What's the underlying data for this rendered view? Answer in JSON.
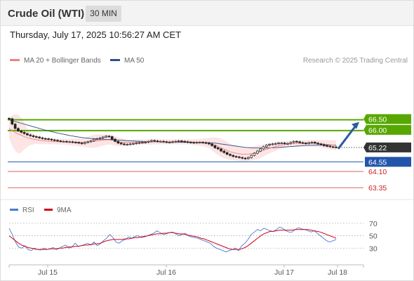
{
  "header": {
    "title": "Crude Oil (WTI)",
    "timeframe": "30 MIN"
  },
  "datetime": "Thursday, July 17, 2025 10:56:27 AM CET",
  "legend": {
    "ma20": {
      "label": "MA 20 + Bollinger Bands",
      "color": "#f08080"
    },
    "ma50": {
      "label": "MA 50",
      "color": "#2c4f8c"
    }
  },
  "credit": "Research © 2025 Trading Central",
  "rsi_legend": {
    "rsi": {
      "label": "RSI",
      "color": "#4a7bd0"
    },
    "ma9": {
      "label": "9MA",
      "color": "#d0021b"
    }
  },
  "chart_data": [
    {
      "type": "candlestick",
      "title": "Crude Oil (WTI)",
      "timeframe": "30 MIN",
      "ylim": [
        62.9,
        67.3
      ],
      "x_ticks": [
        "Jul 15",
        "Jul 16",
        "Jul 17",
        "Jul 18"
      ],
      "current_price": {
        "value": 65.22,
        "label": "65.22",
        "color": "#333333"
      },
      "levels": [
        {
          "value": 66.5,
          "label": "66.50",
          "kind": "resistance",
          "color": "#58a700"
        },
        {
          "value": 66.0,
          "label": "66.00",
          "kind": "resistance",
          "color": "#58a700"
        },
        {
          "value": 64.55,
          "label": "64.55",
          "kind": "pivot",
          "color": "#2255aa"
        },
        {
          "value": 64.1,
          "label": "64.10",
          "kind": "support",
          "color": "#cc2222"
        },
        {
          "value": 63.35,
          "label": "63.35",
          "kind": "support",
          "color": "#cc2222"
        }
      ],
      "series": [
        {
          "name": "MA 20 + Bollinger Bands",
          "color": "#f08080"
        },
        {
          "name": "MA 50",
          "color": "#2c4f8c"
        }
      ],
      "close": [
        66.55,
        66.3,
        66.1,
        65.98,
        65.92,
        65.86,
        65.8,
        65.76,
        65.72,
        65.7,
        65.66,
        65.63,
        65.62,
        65.6,
        65.57,
        65.55,
        65.52,
        65.5,
        65.5,
        65.48,
        65.48,
        65.46,
        65.45,
        65.42,
        65.4,
        65.45,
        65.48,
        65.52,
        65.6,
        65.62,
        65.66,
        65.7,
        65.74,
        65.72,
        65.6,
        65.5,
        65.42,
        65.38,
        65.35,
        65.36,
        65.38,
        65.4,
        65.42,
        65.44,
        65.45,
        65.46,
        65.5,
        65.54,
        65.52,
        65.5,
        65.5,
        65.48,
        65.46,
        65.46,
        65.48,
        65.5,
        65.52,
        65.5,
        65.48,
        65.46,
        65.45,
        65.44,
        65.45,
        65.46,
        65.44,
        65.42,
        65.38,
        65.3,
        65.2,
        65.15,
        65.05,
        64.98,
        64.9,
        64.85,
        64.8,
        64.78,
        64.75,
        64.72,
        64.7,
        64.75,
        64.85,
        64.95,
        65.05,
        65.15,
        65.25,
        65.32,
        65.36,
        65.38,
        65.4,
        65.42,
        65.42,
        65.4,
        65.4,
        65.45,
        65.5,
        65.48,
        65.44,
        65.42,
        65.4,
        65.44,
        65.46,
        65.42,
        65.38,
        65.35,
        65.3,
        65.28,
        65.25,
        65.24,
        65.22
      ],
      "ma20": [
        66.1,
        66.0,
        65.92,
        65.84,
        65.78,
        65.72,
        65.67,
        65.63,
        65.6,
        65.58,
        65.55,
        65.53,
        65.52,
        65.51,
        65.5,
        65.49,
        65.48,
        65.48,
        65.48,
        65.47,
        65.47,
        65.46,
        65.46,
        65.46,
        65.46,
        65.46,
        65.47,
        65.48,
        65.5,
        65.52,
        65.54,
        65.56,
        65.57,
        65.57,
        65.55,
        65.52,
        65.48,
        65.46,
        65.45,
        65.45,
        65.45,
        65.46,
        65.47,
        65.47,
        65.47,
        65.47,
        65.47,
        65.48,
        65.48,
        65.48,
        65.48,
        65.48,
        65.48,
        65.48,
        65.48,
        65.48,
        65.48,
        65.48,
        65.48,
        65.48,
        65.47,
        65.46,
        65.46,
        65.46,
        65.45,
        65.44,
        65.42,
        65.38,
        65.33,
        65.27,
        65.2,
        65.14,
        65.08,
        65.02,
        64.98,
        64.95,
        64.92,
        64.9,
        64.9,
        64.91,
        64.93,
        64.96,
        64.99,
        65.03,
        65.08,
        65.13,
        65.18,
        65.22,
        65.26,
        65.3,
        65.33,
        65.35,
        65.37,
        65.39,
        65.4,
        65.41,
        65.41,
        65.41,
        65.41,
        65.41,
        65.41,
        65.41,
        65.4,
        65.39,
        65.37,
        65.36,
        65.34,
        65.33,
        65.31
      ],
      "ma50": [
        66.5,
        66.46,
        66.42,
        66.38,
        66.34,
        66.3,
        66.26,
        66.22,
        66.18,
        66.14,
        66.1,
        66.06,
        66.02,
        65.98,
        65.95,
        65.92,
        65.89,
        65.86,
        65.83,
        65.8,
        65.77,
        65.75,
        65.72,
        65.7,
        65.68,
        65.66,
        65.65,
        65.63,
        65.62,
        65.61,
        65.6,
        65.6,
        65.59,
        65.59,
        65.58,
        65.57,
        65.56,
        65.55,
        65.54,
        65.53,
        65.52,
        65.52,
        65.51,
        65.5,
        65.5,
        65.49,
        65.49,
        65.48,
        65.48,
        65.48,
        65.48,
        65.47,
        65.47,
        65.47,
        65.47,
        65.47,
        65.46,
        65.46,
        65.46,
        65.46,
        65.46,
        65.46,
        65.45,
        65.45,
        65.45,
        65.45,
        65.44,
        65.43,
        65.42,
        65.4,
        65.38,
        65.36,
        65.34,
        65.32,
        65.3,
        65.28,
        65.26,
        65.24,
        65.22,
        65.21,
        65.2,
        65.19,
        65.19,
        65.19,
        65.19,
        65.19,
        65.2,
        65.2,
        65.21,
        65.22,
        65.23,
        65.24,
        65.25,
        65.26,
        65.27,
        65.28,
        65.29,
        65.3,
        65.31,
        65.31,
        65.32,
        65.32,
        65.33,
        65.33,
        65.33,
        65.33,
        65.33,
        65.33,
        65.33
      ],
      "band_width": [
        0.45,
        0.7,
        0.85,
        0.9,
        0.8,
        0.6,
        0.42,
        0.3,
        0.25,
        0.2,
        0.18,
        0.16,
        0.15,
        0.14,
        0.14,
        0.13,
        0.13,
        0.13,
        0.14,
        0.14,
        0.15,
        0.16,
        0.17,
        0.18,
        0.2,
        0.22,
        0.25,
        0.28,
        0.3,
        0.3,
        0.28,
        0.26,
        0.24,
        0.22,
        0.22,
        0.22,
        0.2,
        0.18,
        0.16,
        0.14,
        0.13,
        0.12,
        0.12,
        0.12,
        0.12,
        0.12,
        0.13,
        0.13,
        0.13,
        0.12,
        0.12,
        0.12,
        0.12,
        0.12,
        0.12,
        0.12,
        0.12,
        0.12,
        0.12,
        0.12,
        0.13,
        0.14,
        0.15,
        0.16,
        0.18,
        0.2,
        0.24,
        0.3,
        0.36,
        0.4,
        0.42,
        0.42,
        0.4,
        0.38,
        0.36,
        0.34,
        0.33,
        0.32,
        0.32,
        0.32,
        0.32,
        0.32,
        0.32,
        0.3,
        0.28,
        0.26,
        0.24,
        0.22,
        0.2,
        0.18,
        0.17,
        0.16,
        0.15,
        0.14,
        0.14,
        0.14,
        0.14,
        0.14,
        0.14,
        0.14,
        0.15,
        0.16,
        0.17,
        0.18,
        0.19,
        0.2,
        0.21,
        0.22,
        0.22
      ]
    },
    {
      "type": "line",
      "title": "RSI",
      "ylim": [
        10,
        80
      ],
      "y_ticks": [
        30,
        50,
        70
      ],
      "x_ticks": [
        "Jul 15",
        "Jul 16",
        "Jul 17",
        "Jul 18"
      ],
      "series": [
        {
          "name": "RSI",
          "color": "#4a7bd0",
          "values": [
            62,
            52,
            40,
            32,
            30,
            34,
            28,
            26,
            30,
            28,
            27,
            30,
            28,
            29,
            31,
            28,
            30,
            33,
            35,
            30,
            32,
            38,
            33,
            34,
            36,
            38,
            35,
            40,
            34,
            37,
            42,
            46,
            52,
            47,
            40,
            38,
            42,
            44,
            48,
            46,
            49,
            50,
            47,
            48,
            50,
            52,
            54,
            58,
            55,
            52,
            53,
            55,
            56,
            53,
            50,
            52,
            54,
            50,
            48,
            47,
            46,
            44,
            42,
            40,
            38,
            33,
            30,
            28,
            26,
            24,
            26,
            28,
            30,
            26,
            34,
            38,
            44,
            52,
            56,
            60,
            58,
            62,
            60,
            58,
            57,
            60,
            64,
            62,
            58,
            56,
            56,
            60,
            63,
            61,
            60,
            58,
            56,
            58,
            54,
            50,
            46,
            42,
            40,
            42,
            44
          ]
        },
        {
          "name": "9MA",
          "color": "#d0021b",
          "values": [
            50,
            46,
            42,
            38,
            35,
            33,
            31,
            30,
            29,
            28,
            28,
            28,
            28,
            29,
            29,
            29,
            30,
            30,
            31,
            32,
            32,
            33,
            33,
            34,
            35,
            35,
            36,
            37,
            37,
            38,
            40,
            42,
            43,
            44,
            44,
            44,
            44,
            45,
            45,
            46,
            47,
            47,
            48,
            49,
            50,
            51,
            52,
            53,
            53,
            54,
            54,
            55,
            55,
            54,
            53,
            53,
            52,
            51,
            50,
            49,
            48,
            46,
            45,
            43,
            41,
            39,
            37,
            35,
            33,
            31,
            29,
            28,
            28,
            28,
            29,
            31,
            34,
            38,
            42,
            46,
            50,
            53,
            55,
            57,
            57,
            58,
            59,
            59,
            59,
            59,
            59,
            60,
            60,
            60,
            60,
            60,
            59,
            58,
            57,
            56,
            54,
            52,
            50,
            48,
            46
          ]
        }
      ]
    }
  ]
}
